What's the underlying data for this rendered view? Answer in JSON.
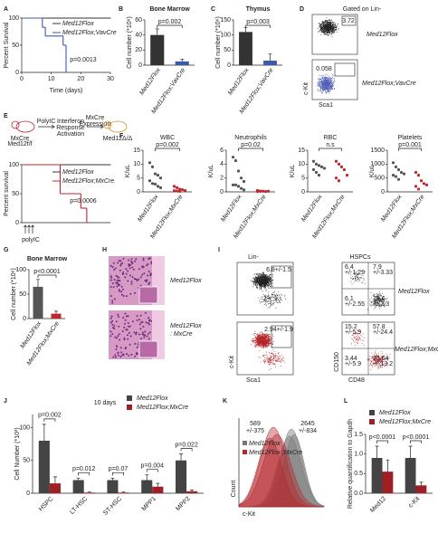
{
  "chart_data": [
    {
      "type": "step",
      "label": "A",
      "ylabel": "Percent Survival",
      "xlabel": "Time (days)",
      "xlim": [
        0,
        30
      ],
      "xticks": [
        0,
        10,
        20,
        30
      ],
      "ylim": [
        0,
        100
      ],
      "yticks": [
        0,
        50,
        100
      ],
      "annotation": "p=0.0013",
      "series": [
        {
          "name": "Med12Flox",
          "color": "#333333",
          "x": [
            0,
            30
          ],
          "values": [
            100,
            100
          ]
        },
        {
          "name": "Med12Flox;VavCre",
          "color": "#3b5ba9",
          "x": [
            0,
            7,
            8,
            14,
            15
          ],
          "values": [
            100,
            83,
            67,
            50,
            0
          ]
        }
      ]
    },
    {
      "type": "bar",
      "label": "B",
      "title": "Bone Marrow",
      "ylabel": "Cell number (*10⁶)",
      "categories": [
        "Med12Flox",
        "Med12Flox;VavCre"
      ],
      "colors": [
        "#333333",
        "#3b5ba9"
      ],
      "values": [
        40,
        5
      ],
      "errors": [
        8,
        3
      ],
      "ylim": [
        0,
        60
      ],
      "yticks": [
        0,
        20,
        40,
        60
      ],
      "pvalue": "p=0.002"
    },
    {
      "type": "bar",
      "label": "C",
      "title": "Thymus",
      "ylabel": "Cell number (*10⁶)",
      "categories": [
        "Med12Flox",
        "Med12Flox;VavCre"
      ],
      "colors": [
        "#333333",
        "#3b5ba9"
      ],
      "values": [
        110,
        15
      ],
      "errors": [
        15,
        22
      ],
      "ylim": [
        0,
        150
      ],
      "yticks": [
        0,
        50,
        100,
        150
      ],
      "pvalue": "p=0.003"
    },
    {
      "type": "step",
      "ylabel": "Percent survival",
      "xlim": [
        0,
        30
      ],
      "ylim": [
        0,
        100
      ],
      "yticks": [
        0,
        50,
        100
      ],
      "annotation": "p=0.0006",
      "series": [
        {
          "name": "Med12Flox",
          "color": "#333333",
          "x": [
            0,
            30
          ],
          "values": [
            100,
            100
          ]
        },
        {
          "name": "Med12Flox;MxCre",
          "color": "#c0272d",
          "x": [
            0,
            13,
            20,
            22
          ],
          "values": [
            100,
            50,
            25,
            0
          ]
        }
      ]
    },
    {
      "type": "strip",
      "label": "F",
      "title": "WBC",
      "ylabel": "K/uL",
      "categories": [
        "Med12Flox",
        "Med12Flox;MxCre"
      ],
      "colors": [
        "#555555",
        "#c0272d"
      ],
      "values": [
        [
          10.5,
          9,
          6.5,
          6,
          5,
          4,
          3,
          2.8,
          2,
          1.5
        ],
        [
          2,
          1.5,
          1,
          0.8,
          0.5,
          0.4,
          0.3,
          0.2
        ]
      ],
      "ylim": [
        0,
        15
      ],
      "yticks": [
        0,
        5,
        10,
        15
      ],
      "pvalue": "p=0.002"
    },
    {
      "type": "strip",
      "title": "Neutrophils",
      "ylabel": "K/uL",
      "categories": [
        "Med12Flox",
        "Med12Flox;MxCre"
      ],
      "colors": [
        "#555555",
        "#c0272d"
      ],
      "values": [
        [
          5,
          4.5,
          3,
          2,
          1.5,
          1,
          1,
          0.8,
          0.5,
          0.3
        ],
        [
          0.2,
          0.1,
          0.1,
          0.05,
          0.1,
          0.05,
          0.1
        ]
      ],
      "ylim": [
        0,
        6
      ],
      "yticks": [
        0,
        2,
        4,
        6
      ],
      "pvalue": "p=0.02"
    },
    {
      "type": "strip",
      "title": "RBC",
      "ylabel": "K/uL",
      "categories": [
        "Med12Flox",
        "Med12Flox;MxCre"
      ],
      "colors": [
        "#555555",
        "#c0272d"
      ],
      "values": [
        [
          11,
          10,
          9.5,
          9,
          8.5,
          8,
          7,
          6
        ],
        [
          11,
          10,
          9,
          8,
          6,
          5,
          4
        ]
      ],
      "ylim": [
        0,
        15
      ],
      "yticks": [
        0,
        5,
        10,
        15
      ],
      "pvalue": "n.s"
    },
    {
      "type": "strip",
      "title": "Platelets",
      "ylabel": "K/uL",
      "categories": [
        "Med12Flox",
        "Med12Flox;MxCre"
      ],
      "colors": [
        "#555555",
        "#c0272d"
      ],
      "values": [
        [
          1050,
          900,
          800,
          700,
          650,
          600,
          550,
          450
        ],
        [
          700,
          600,
          400,
          300,
          250,
          200,
          100
        ]
      ],
      "ylim": [
        0,
        1500
      ],
      "yticks": [
        0,
        500,
        1000,
        1500
      ],
      "pvalue": "p=0.001"
    },
    {
      "type": "bar",
      "label": "G",
      "title": "Bone Marrow",
      "ylabel": "Cell number (*10⁶)",
      "categories": [
        "Med12Flox",
        "Med12Flox;MxCre"
      ],
      "colors": [
        "#555555",
        "#c0272d"
      ],
      "values": [
        65,
        10
      ],
      "errors": [
        15,
        5
      ],
      "ylim": [
        0,
        100
      ],
      "yticks": [
        0,
        50,
        100
      ],
      "pvalue": "p<0.0001"
    },
    {
      "type": "bar",
      "label": "J",
      "title": "10 days",
      "ylabel": "Cell Number (*10³)",
      "categories": [
        "HSPC",
        "LT-HSC",
        "ST-HSC",
        "MPP1",
        "MPP2"
      ],
      "series": [
        {
          "name": "Med12Flox",
          "color": "#444444",
          "values": [
            80,
            20,
            20,
            20,
            50
          ],
          "errors": [
            25,
            3,
            3,
            8,
            10
          ]
        },
        {
          "name": "Med12Flox;MxCre",
          "color": "#a01f24",
          "values": [
            15,
            1,
            1,
            10,
            3
          ],
          "errors": [
            10,
            1,
            1,
            5,
            2
          ]
        }
      ],
      "pvalues": [
        "p=0.002",
        "p=0.012",
        "p=0.07",
        "p=0.004",
        "p=0.022"
      ],
      "ylim": [
        0,
        120
      ],
      "yticks": [
        0,
        50,
        100
      ]
    },
    {
      "type": "bar",
      "label": "L",
      "ylabel": "Relative quantification to Gapdh",
      "categories": [
        "Med12",
        "c-Kit"
      ],
      "series": [
        {
          "name": "Med12Flox",
          "color": "#444444",
          "values": [
            0.9,
            0.9
          ],
          "errors": [
            0.3,
            0.3
          ]
        },
        {
          "name": "Med12Flox;MxCre",
          "color": "#a01f24",
          "values": [
            0.55,
            0.2
          ],
          "errors": [
            0.3,
            0.08
          ]
        }
      ],
      "pvalues": [
        "p<0.0001",
        "p<0.0001"
      ],
      "ylim": [
        0,
        1.5
      ],
      "yticks": [
        {
          "value": 0,
          "label": "0.0"
        },
        0.5,
        {
          "value": 1,
          "label": "1.0"
        },
        1.5
      ]
    }
  ],
  "panels": {
    "D": {
      "label": "D",
      "title": "Gated on Lin-",
      "top_value": "3.72",
      "bottom_value": "0.058",
      "y_axis": "c-Kit",
      "x_axis": "Sca1",
      "top_name": "Med12Flox",
      "bottom_name": "Med12Flox;VavCre"
    },
    "E": {
      "label": "E",
      "step1": "PolyIC",
      "step2": [
        "Interferon",
        "Response",
        "Activation"
      ],
      "step3": [
        "MxCre",
        "Expression"
      ],
      "mouse_start": [
        "MxCre",
        "Med12f/f"
      ],
      "mouse_end": "Med12Δ/Δ",
      "injection": "polyIC"
    },
    "H": {
      "label": "H",
      "top_name": "Med12Flox",
      "bottom_name": [
        "Med12Flox",
        ": MxCre"
      ]
    },
    "I": {
      "label": "I",
      "left_title": "Lin-",
      "right_title": "HSPCs",
      "top_name": "Med12Flox",
      "bottom_name": "Med12Flox;MxCre",
      "x_left": "Sca1",
      "y_left": "c-Kit",
      "x_right": "CD48",
      "y_right": "CD150",
      "top_lin": "6.8+/-1.5",
      "bottom_lin": "2.94+/-1.9",
      "top_quadrants": [
        [
          "6.4",
          "+/-1.29"
        ],
        [
          "7.9",
          "+/-3.33"
        ],
        [
          "6.1",
          "+/-2.55"
        ],
        [
          "79.6",
          "+/-2.3"
        ]
      ],
      "bottom_quadrants": [
        [
          "15.2",
          "+/-5.9"
        ],
        [
          "57.8",
          "+/-24.4"
        ],
        [
          "3.44",
          "+/-5.9"
        ],
        [
          "23.64",
          "+/-13.2"
        ]
      ]
    },
    "K": {
      "label": "K",
      "bottom_stat": [
        "589",
        "+/-375"
      ],
      "top_stat": [
        "2645",
        "+/-834"
      ],
      "y_axis": "Count",
      "x_axis": "c-Kit",
      "legend": [
        "Med12Flox",
        "Med12Flox ;MxCre"
      ]
    }
  }
}
